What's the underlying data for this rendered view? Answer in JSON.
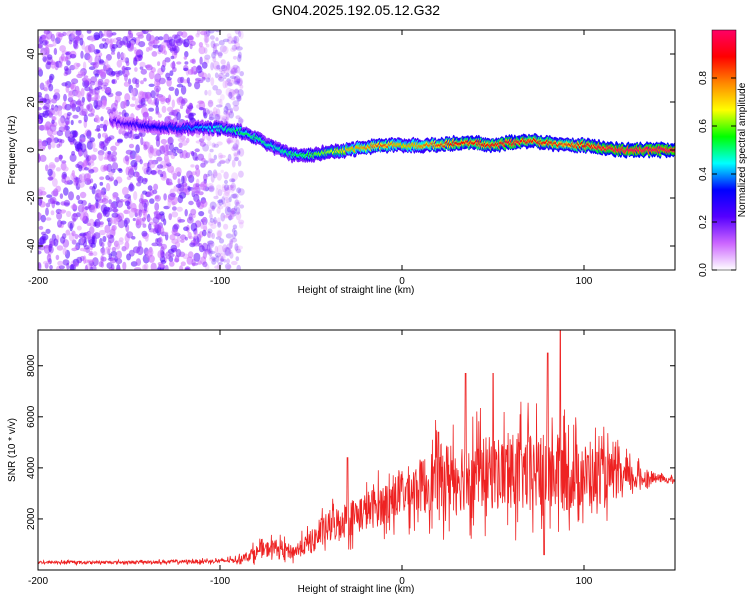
{
  "figure_title": "GN04.2025.192.05.12.G32",
  "chart_data": [
    {
      "type": "heatmap",
      "title": "GN04.2025.192.05.12.G32",
      "xlabel": "Height of straight line (km)",
      "ylabel": "Frequency (Hz)",
      "xlim": [
        -200,
        150
      ],
      "ylim": [
        -50,
        50
      ],
      "xticks": [
        -200,
        -100,
        0,
        100
      ],
      "yticks": [
        -40,
        -20,
        0,
        20,
        40
      ],
      "colorbar": {
        "label": "Normalized spectral amplitude",
        "range": [
          0,
          1
        ],
        "ticks": [
          0.0,
          0.2,
          0.4,
          0.6,
          0.8
        ],
        "tick_labels": [
          "0.0",
          "0.2",
          "0.4",
          "0.6",
          "0.8"
        ],
        "colormap": [
          "#ffffff",
          "#cc66ff",
          "#5500ff",
          "#0000ff",
          "#00ffff",
          "#00ff00",
          "#ffff00",
          "#ff8800",
          "#ff0000",
          "#ff0066"
        ]
      },
      "signal_ridge": {
        "x": [
          -160,
          -140,
          -120,
          -100,
          -90,
          -80,
          -70,
          -60,
          -50,
          -40,
          -30,
          -20,
          -10,
          0,
          10,
          20,
          30,
          40,
          50,
          60,
          70,
          80,
          90,
          100,
          110,
          120,
          130,
          140,
          150
        ],
        "frequency": [
          12,
          10,
          9,
          9,
          8,
          5,
          1,
          -2,
          -2,
          -1,
          0,
          1,
          2,
          2,
          2,
          2,
          3,
          3,
          2,
          3,
          4,
          3,
          2,
          2,
          1,
          0,
          0,
          0,
          0
        ],
        "amplitude": [
          0.2,
          0.3,
          0.35,
          0.45,
          0.5,
          0.5,
          0.45,
          0.5,
          0.55,
          0.6,
          0.7,
          0.75,
          0.8,
          0.7,
          0.75,
          0.8,
          0.85,
          0.85,
          0.85,
          0.9,
          0.85,
          0.85,
          0.8,
          0.85,
          0.9,
          0.95,
          0.95,
          0.95,
          0.95
        ]
      },
      "noise_region": {
        "x_from": -200,
        "x_to": -88,
        "amplitude": 0.2
      }
    },
    {
      "type": "line",
      "xlabel": "Height of straight line (km)",
      "ylabel": "SNR (10 * v/v)",
      "xlim": [
        -200,
        150
      ],
      "ylim": [
        0,
        9400
      ],
      "xticks": [
        -200,
        -100,
        0,
        100
      ],
      "yticks": [
        2000,
        4000,
        6000,
        8000
      ],
      "color": "#ee2222",
      "envelope": {
        "x": [
          -200,
          -150,
          -100,
          -90,
          -80,
          -70,
          -60,
          -50,
          -40,
          -30,
          -20,
          -10,
          0,
          10,
          20,
          30,
          40,
          50,
          60,
          70,
          80,
          90,
          100,
          110,
          120,
          130,
          140,
          150
        ],
        "base": [
          300,
          300,
          350,
          400,
          700,
          900,
          700,
          1100,
          1700,
          2000,
          2300,
          2600,
          3000,
          3300,
          3600,
          3700,
          3800,
          3800,
          3800,
          3800,
          3800,
          3700,
          3700,
          3700,
          3600,
          3600,
          3600,
          3500
        ],
        "spread": [
          100,
          100,
          150,
          200,
          500,
          600,
          500,
          800,
          1200,
          1300,
          1400,
          1500,
          1700,
          1900,
          2400,
          2600,
          2600,
          2600,
          2800,
          2800,
          2800,
          2600,
          2300,
          2000,
          1400,
          800,
          300,
          200
        ]
      },
      "notable_peaks": [
        {
          "x": -30,
          "y": 4400
        },
        {
          "x": 20,
          "y": 5400
        },
        {
          "x": 35,
          "y": 7700
        },
        {
          "x": 50,
          "y": 7700
        },
        {
          "x": 80,
          "y": 8500
        },
        {
          "x": 87,
          "y": 9400
        }
      ],
      "notable_dips": [
        {
          "x": 78,
          "y": 600
        }
      ]
    }
  ]
}
